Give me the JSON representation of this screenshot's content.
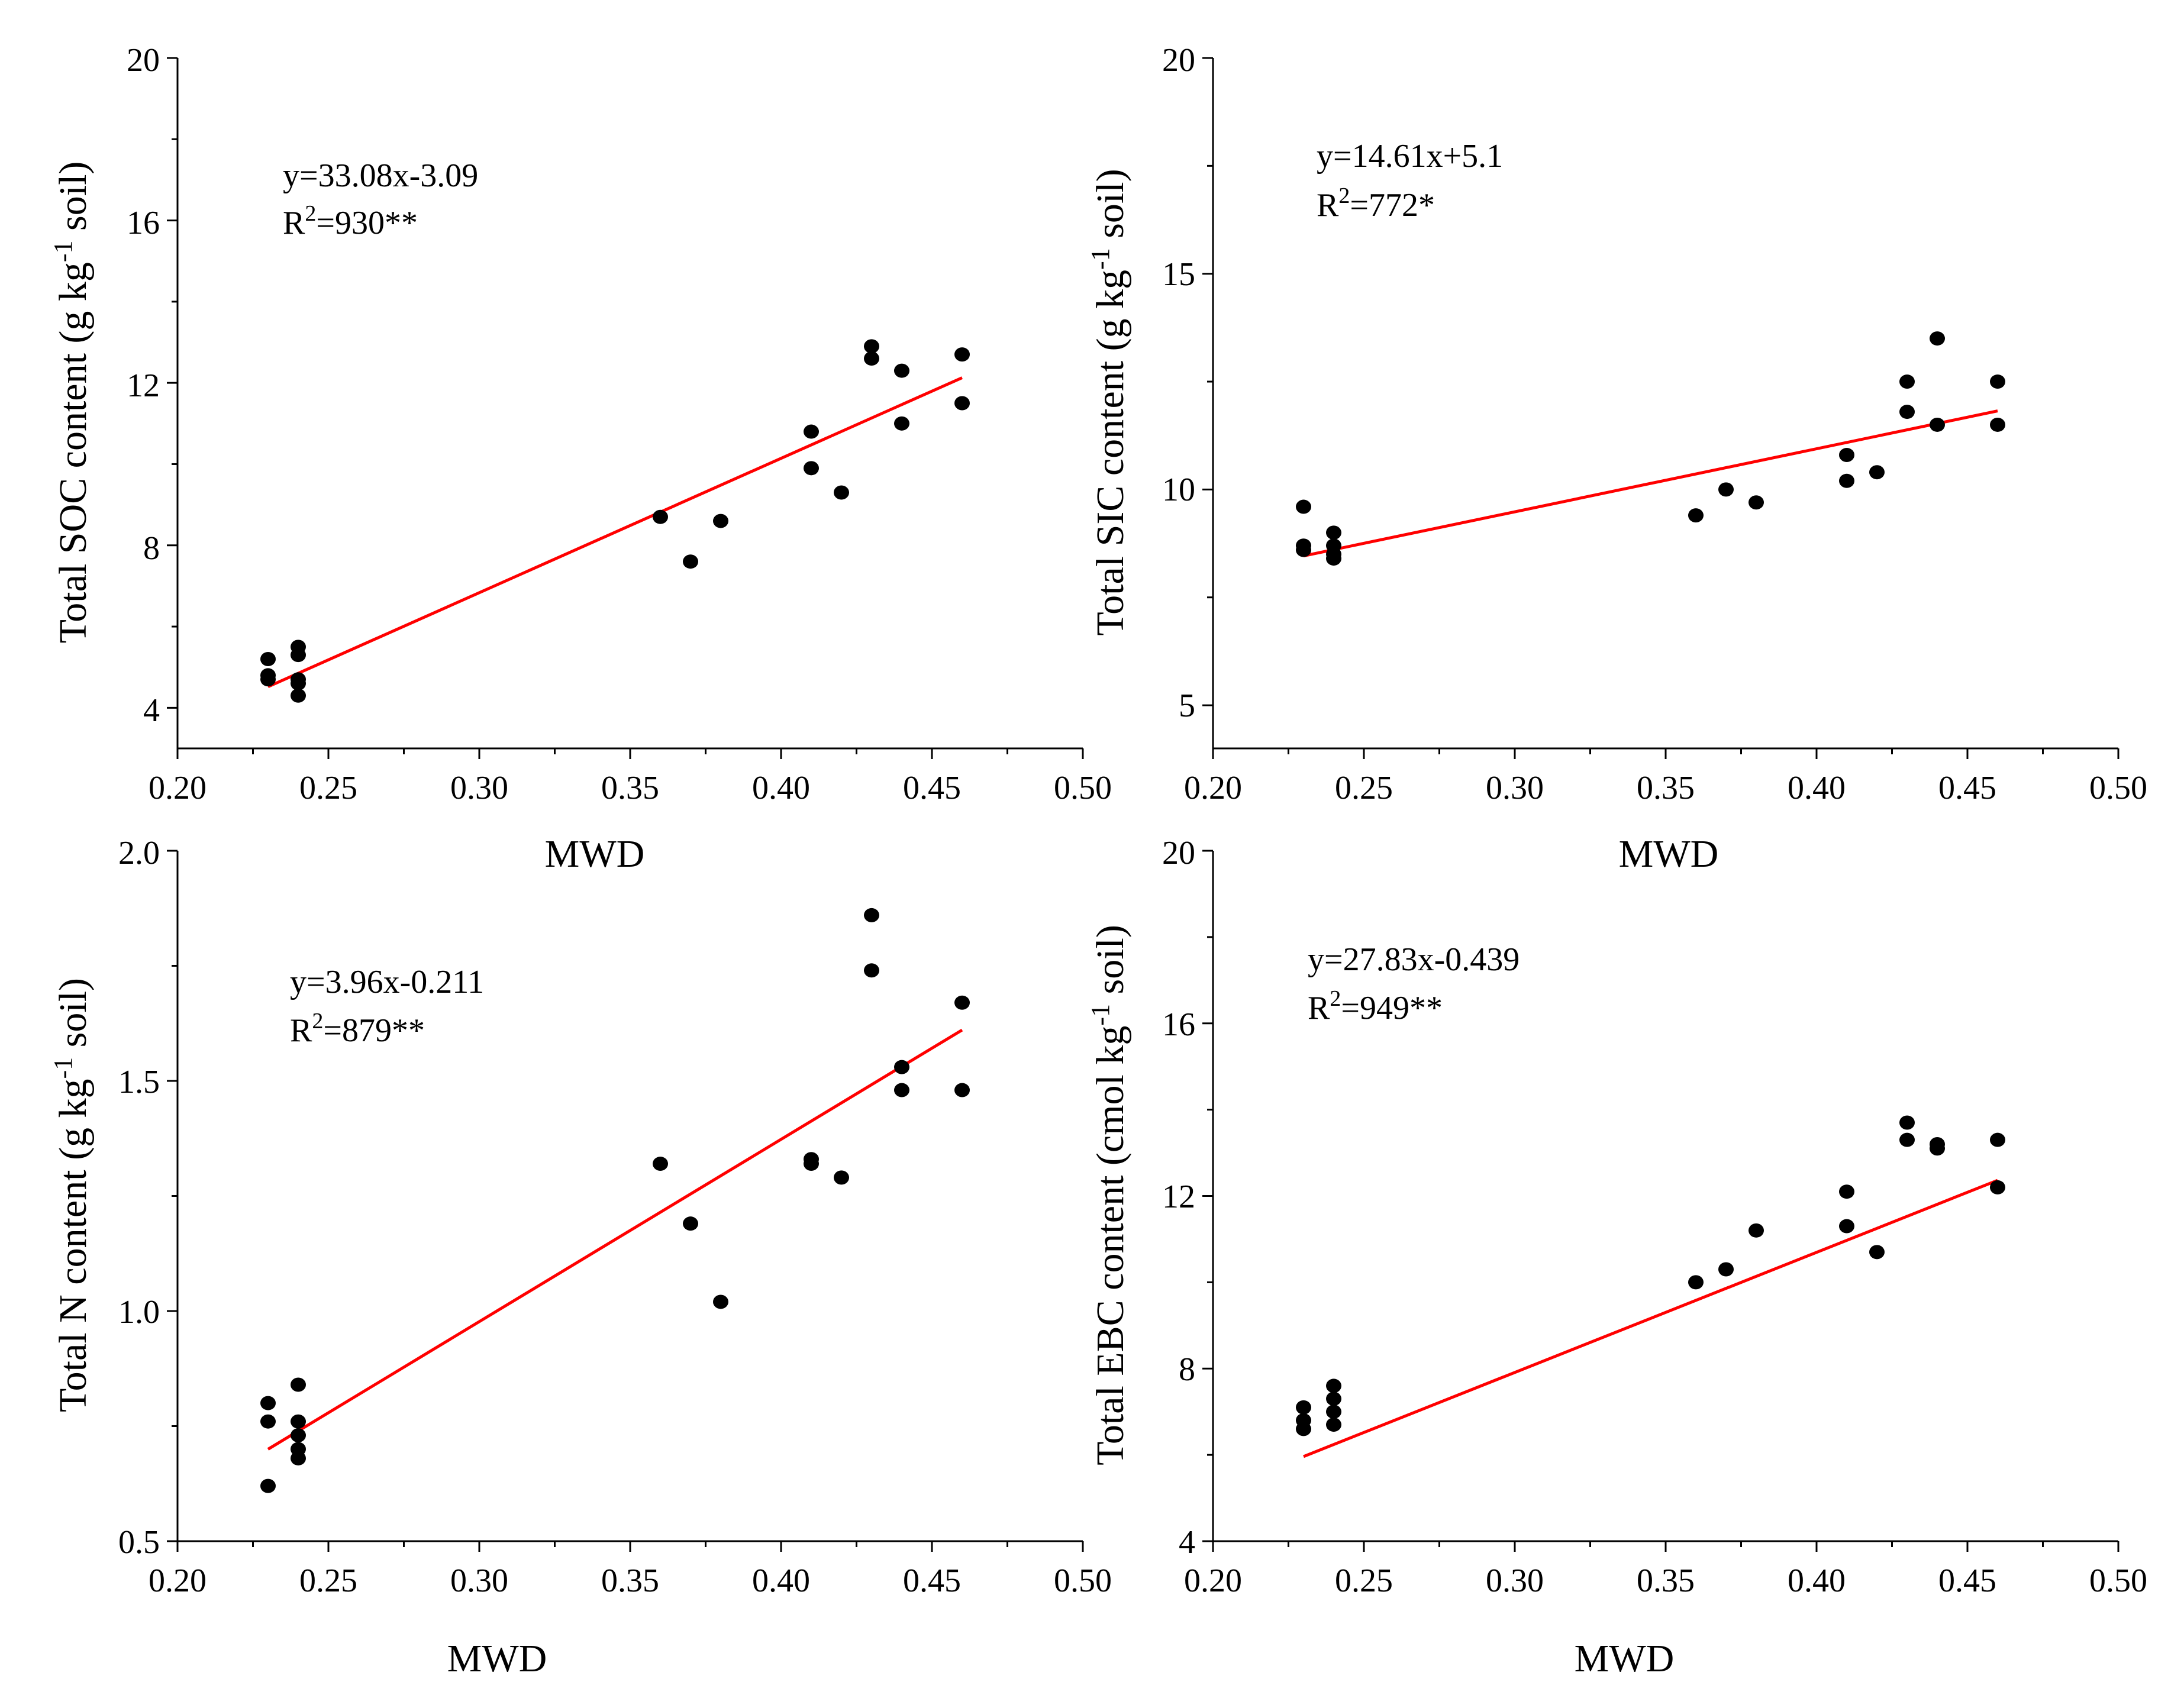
{
  "colors": {
    "points": "#000000",
    "fit_line": "#ff0000",
    "axes": "#000000",
    "background": "#ffffff"
  },
  "chart_data": [
    {
      "type": "scatter",
      "id": "soc",
      "title": "",
      "xlabel": "MWD",
      "ylabel_main": "Total SOC content (g kg",
      "ylabel_sup": "-1",
      "ylabel_end": " soil)",
      "xlim": [
        0.2,
        0.5
      ],
      "ylim": [
        3,
        20
      ],
      "xticks": [
        0.2,
        0.25,
        0.3,
        0.35,
        0.4,
        0.45,
        0.5
      ],
      "xtick_labels": [
        "0.20",
        "0.25",
        "0.30",
        "0.35",
        "0.40",
        "0.45",
        "0.50"
      ],
      "yticks": [
        4,
        8,
        12,
        16,
        20
      ],
      "ytick_labels": [
        "4",
        "8",
        "12",
        "16",
        "20"
      ],
      "points": [
        {
          "x": 0.23,
          "y": 5.2
        },
        {
          "x": 0.23,
          "y": 4.8
        },
        {
          "x": 0.23,
          "y": 4.7
        },
        {
          "x": 0.24,
          "y": 5.5
        },
        {
          "x": 0.24,
          "y": 5.3
        },
        {
          "x": 0.24,
          "y": 4.7
        },
        {
          "x": 0.24,
          "y": 4.6
        },
        {
          "x": 0.24,
          "y": 4.3
        },
        {
          "x": 0.36,
          "y": 8.7
        },
        {
          "x": 0.37,
          "y": 7.6
        },
        {
          "x": 0.38,
          "y": 8.6
        },
        {
          "x": 0.41,
          "y": 10.8
        },
        {
          "x": 0.41,
          "y": 9.9
        },
        {
          "x": 0.42,
          "y": 9.3
        },
        {
          "x": 0.43,
          "y": 12.9
        },
        {
          "x": 0.43,
          "y": 12.6
        },
        {
          "x": 0.44,
          "y": 12.3
        },
        {
          "x": 0.44,
          "y": 11.0
        },
        {
          "x": 0.46,
          "y": 12.7
        },
        {
          "x": 0.46,
          "y": 11.5
        }
      ],
      "fit": {
        "slope": 33.08,
        "intercept": -3.09,
        "x_range": [
          0.23,
          0.46
        ]
      },
      "equation": "y=33.08x-3.09",
      "r2_prefix": "R",
      "r2_sup": "2",
      "r2_value": "=930**"
    },
    {
      "type": "scatter",
      "id": "sic",
      "title": "",
      "xlabel": "MWD",
      "ylabel_main": "Total SIC content (g kg",
      "ylabel_sup": "-1",
      "ylabel_end": " soil)",
      "xlim": [
        0.2,
        0.5
      ],
      "ylim": [
        4,
        20
      ],
      "xticks": [
        0.2,
        0.25,
        0.3,
        0.35,
        0.4,
        0.45,
        0.5
      ],
      "xtick_labels": [
        "0.20",
        "0.25",
        "0.30",
        "0.35",
        "0.40",
        "0.45",
        "0.50"
      ],
      "yticks": [
        5,
        10,
        15,
        20
      ],
      "ytick_labels": [
        "5",
        "10",
        "15",
        "20"
      ],
      "points": [
        {
          "x": 0.23,
          "y": 9.6
        },
        {
          "x": 0.23,
          "y": 8.7
        },
        {
          "x": 0.23,
          "y": 8.6
        },
        {
          "x": 0.24,
          "y": 9.0
        },
        {
          "x": 0.24,
          "y": 8.7
        },
        {
          "x": 0.24,
          "y": 8.5
        },
        {
          "x": 0.24,
          "y": 8.4
        },
        {
          "x": 0.36,
          "y": 9.4
        },
        {
          "x": 0.37,
          "y": 10.0
        },
        {
          "x": 0.38,
          "y": 9.7
        },
        {
          "x": 0.41,
          "y": 10.8
        },
        {
          "x": 0.41,
          "y": 10.2
        },
        {
          "x": 0.42,
          "y": 10.4
        },
        {
          "x": 0.43,
          "y": 12.5
        },
        {
          "x": 0.43,
          "y": 11.8
        },
        {
          "x": 0.44,
          "y": 13.5
        },
        {
          "x": 0.44,
          "y": 11.5
        },
        {
          "x": 0.46,
          "y": 12.5
        },
        {
          "x": 0.46,
          "y": 11.5
        }
      ],
      "fit": {
        "slope": 14.61,
        "intercept": 5.1,
        "x_range": [
          0.23,
          0.46
        ]
      },
      "equation": "y=14.61x+5.1",
      "r2_prefix": "R",
      "r2_sup": "2",
      "r2_value": "=772*"
    },
    {
      "type": "scatter",
      "id": "n",
      "title": "",
      "xlabel": "MWD",
      "ylabel_main": "Total N content (g kg",
      "ylabel_sup": "-1",
      "ylabel_end": " soil)",
      "xlim": [
        0.2,
        0.5
      ],
      "ylim": [
        0.5,
        2.0
      ],
      "xticks": [
        0.2,
        0.25,
        0.3,
        0.35,
        0.4,
        0.45,
        0.5
      ],
      "xtick_labels": [
        "0.20",
        "0.25",
        "0.30",
        "0.35",
        "0.40",
        "0.45",
        "0.50"
      ],
      "yticks": [
        0.5,
        1.0,
        1.5,
        2.0
      ],
      "ytick_labels": [
        "0.5",
        "1.0",
        "1.5",
        "2.0"
      ],
      "points": [
        {
          "x": 0.23,
          "y": 0.8
        },
        {
          "x": 0.23,
          "y": 0.76
        },
        {
          "x": 0.23,
          "y": 0.62
        },
        {
          "x": 0.24,
          "y": 0.84
        },
        {
          "x": 0.24,
          "y": 0.76
        },
        {
          "x": 0.24,
          "y": 0.73
        },
        {
          "x": 0.24,
          "y": 0.7
        },
        {
          "x": 0.24,
          "y": 0.68
        },
        {
          "x": 0.36,
          "y": 1.32
        },
        {
          "x": 0.37,
          "y": 1.19
        },
        {
          "x": 0.38,
          "y": 1.02
        },
        {
          "x": 0.41,
          "y": 1.33
        },
        {
          "x": 0.41,
          "y": 1.32
        },
        {
          "x": 0.42,
          "y": 1.29
        },
        {
          "x": 0.43,
          "y": 1.86
        },
        {
          "x": 0.43,
          "y": 1.74
        },
        {
          "x": 0.44,
          "y": 1.53
        },
        {
          "x": 0.44,
          "y": 1.48
        },
        {
          "x": 0.46,
          "y": 1.67
        },
        {
          "x": 0.46,
          "y": 1.48
        }
      ],
      "fit": {
        "slope": 3.96,
        "intercept": -0.211,
        "x_range": [
          0.23,
          0.46
        ]
      },
      "equation": "y=3.96x-0.211",
      "r2_prefix": "R",
      "r2_sup": "2",
      "r2_value": "=879**"
    },
    {
      "type": "scatter",
      "id": "ebc",
      "title": "",
      "xlabel": "MWD",
      "ylabel_main": "Total EBC content (cmol kg",
      "ylabel_sup": "-1",
      "ylabel_end": " soil)",
      "xlim": [
        0.2,
        0.5
      ],
      "ylim": [
        4,
        20
      ],
      "xticks": [
        0.2,
        0.25,
        0.3,
        0.35,
        0.4,
        0.45,
        0.5
      ],
      "xtick_labels": [
        "0.20",
        "0.25",
        "0.30",
        "0.35",
        "0.40",
        "0.45",
        "0.50"
      ],
      "yticks": [
        4,
        8,
        12,
        16,
        20
      ],
      "ytick_labels": [
        "4",
        "8",
        "12",
        "16",
        "20"
      ],
      "points": [
        {
          "x": 0.23,
          "y": 7.1
        },
        {
          "x": 0.23,
          "y": 6.8
        },
        {
          "x": 0.23,
          "y": 6.6
        },
        {
          "x": 0.24,
          "y": 7.6
        },
        {
          "x": 0.24,
          "y": 7.3
        },
        {
          "x": 0.24,
          "y": 7.0
        },
        {
          "x": 0.24,
          "y": 6.7
        },
        {
          "x": 0.36,
          "y": 10.0
        },
        {
          "x": 0.37,
          "y": 10.3
        },
        {
          "x": 0.38,
          "y": 11.2
        },
        {
          "x": 0.41,
          "y": 12.1
        },
        {
          "x": 0.41,
          "y": 11.3
        },
        {
          "x": 0.42,
          "y": 10.7
        },
        {
          "x": 0.43,
          "y": 13.7
        },
        {
          "x": 0.43,
          "y": 13.3
        },
        {
          "x": 0.44,
          "y": 13.2
        },
        {
          "x": 0.44,
          "y": 13.1
        },
        {
          "x": 0.46,
          "y": 13.3
        },
        {
          "x": 0.46,
          "y": 12.2
        }
      ],
      "fit": {
        "slope": 27.83,
        "intercept": -0.439,
        "x_range": [
          0.23,
          0.46
        ]
      },
      "equation": "y=27.83x-0.439",
      "r2_prefix": "R",
      "r2_sup": "2",
      "r2_value": "=949**"
    }
  ]
}
